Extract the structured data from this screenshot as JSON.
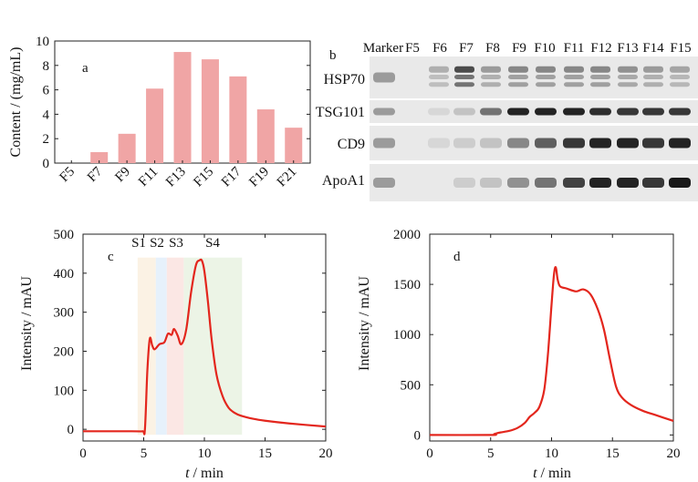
{
  "chart_data": [
    {
      "panel": "a",
      "type": "bar",
      "categories": [
        "F5",
        "F7",
        "F9",
        "F11",
        "F13",
        "F15",
        "F17",
        "F19",
        "F21"
      ],
      "values": [
        0,
        0.9,
        2.4,
        6.1,
        9.1,
        8.5,
        7.1,
        4.4,
        2.9
      ],
      "ylabel": "Content / (mg/mL)",
      "ylim": [
        0,
        10
      ],
      "yticks": [
        0,
        2,
        4,
        6,
        8,
        10
      ],
      "bar_color": "#f0a5a5"
    },
    {
      "panel": "b",
      "type": "blot",
      "lane_labels": [
        "Marker",
        "F5",
        "F6",
        "F7",
        "F8",
        "F9",
        "F10",
        "F11",
        "F12",
        "F13",
        "F14",
        "F15"
      ],
      "rows": [
        {
          "name": "HSP70",
          "intensities": [
            0.35,
            0,
            0.25,
            0.75,
            0.35,
            0.45,
            0.45,
            0.45,
            0.45,
            0.4,
            0.35,
            0.3
          ]
        },
        {
          "name": "TSG101",
          "intensities": [
            0.35,
            0,
            0.05,
            0.15,
            0.55,
            0.95,
            0.95,
            0.95,
            0.9,
            0.85,
            0.85,
            0.85
          ]
        },
        {
          "name": "CD9",
          "intensities": [
            0.35,
            0,
            0.05,
            0.1,
            0.15,
            0.45,
            0.65,
            0.85,
            0.95,
            0.95,
            0.85,
            0.95
          ]
        },
        {
          "name": "ApoA1",
          "intensities": [
            0.35,
            0,
            0,
            0.1,
            0.15,
            0.4,
            0.55,
            0.8,
            0.95,
            0.95,
            0.85,
            1.0
          ]
        }
      ]
    },
    {
      "panel": "c",
      "type": "line",
      "xlabel_var": "t",
      "xlabel_unit": " / min",
      "ylabel": "Intensity / mAU",
      "xlim": [
        0,
        20
      ],
      "ylim": [
        -30,
        500
      ],
      "xticks": [
        0,
        5,
        10,
        15,
        20
      ],
      "yticks": [
        0,
        100,
        200,
        300,
        400,
        500
      ],
      "line_color": "#e3261d",
      "x": [
        0,
        4,
        4.9,
        5.1,
        5.3,
        5.5,
        5.7,
        5.9,
        6.3,
        6.7,
        7,
        7.3,
        7.5,
        7.8,
        8.1,
        8.5,
        8.9,
        9.3,
        9.6,
        9.8,
        10,
        10.3,
        10.6,
        11,
        11.5,
        12,
        12.5,
        13,
        14,
        15,
        17,
        20
      ],
      "y": [
        -5,
        -5,
        -5,
        0,
        150,
        232,
        215,
        205,
        218,
        223,
        245,
        242,
        257,
        240,
        218,
        255,
        350,
        420,
        433,
        432,
        405,
        325,
        230,
        140,
        85,
        55,
        42,
        35,
        27,
        22,
        15,
        7
      ],
      "regions": [
        {
          "label": "S1",
          "x0": 4.5,
          "x1": 6.0,
          "color": "#fbf2e4"
        },
        {
          "label": "S2",
          "x0": 6.0,
          "x1": 6.9,
          "color": "#e6f1fb"
        },
        {
          "label": "S3",
          "x0": 6.9,
          "x1": 8.3,
          "color": "#fbe7e4"
        },
        {
          "label": "S4",
          "x0": 8.3,
          "x1": 13.1,
          "color": "#ecf4e6"
        }
      ],
      "region_ymax": 440
    },
    {
      "panel": "d",
      "type": "line",
      "xlabel_var": "t",
      "xlabel_unit": " / min",
      "ylabel": "Intensity / mAU",
      "xlim": [
        0,
        20
      ],
      "ylim": [
        -60,
        2000
      ],
      "xticks": [
        0,
        5,
        10,
        15,
        20
      ],
      "yticks": [
        0,
        500,
        1000,
        1500,
        2000
      ],
      "line_color": "#e3261d",
      "x": [
        0,
        5,
        5.3,
        5.8,
        6.5,
        7.2,
        7.8,
        8.2,
        8.6,
        9.0,
        9.4,
        9.7,
        10.0,
        10.2,
        10.35,
        10.5,
        10.7,
        11.2,
        12.0,
        12.6,
        13.2,
        13.8,
        14.3,
        14.8,
        15.3,
        15.8,
        16.5,
        17.5,
        18.5,
        20
      ],
      "y": [
        0,
        0,
        10,
        25,
        40,
        70,
        120,
        180,
        220,
        280,
        450,
        800,
        1300,
        1600,
        1670,
        1550,
        1480,
        1460,
        1430,
        1450,
        1400,
        1250,
        1050,
        750,
        480,
        370,
        300,
        240,
        200,
        140
      ]
    }
  ]
}
